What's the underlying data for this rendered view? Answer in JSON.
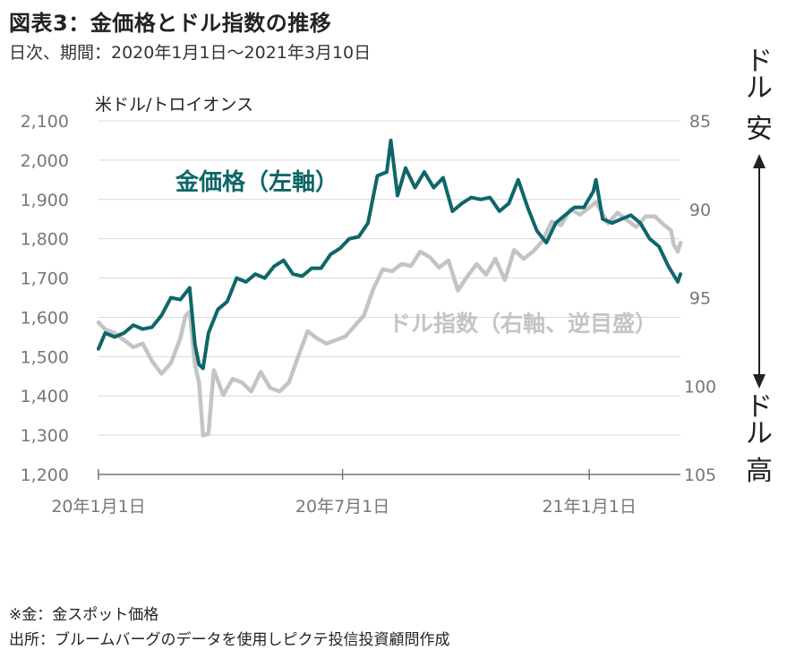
{
  "title": "図表3：金価格とドル指数の推移",
  "subtitle": "日次、期間：2020年1月1日～2021年3月10日",
  "notes": [
    "※金：金スポット価格",
    "出所：ブルームバーグのデータを使用しピクテ投信投資顧問作成"
  ],
  "colors": {
    "gold": "#0e6668",
    "dollar": "#c4c4c4",
    "grid": "#d9d9d9",
    "axis": "#777777"
  },
  "chart_data": {
    "type": "line",
    "left_unit": "米ドル/トロイオンス",
    "left_ylim": [
      1200,
      2100
    ],
    "left_ticks": [
      "2,100",
      "2,000",
      "1,900",
      "1,800",
      "1,700",
      "1,600",
      "1,500",
      "1,400",
      "1,300",
      "1,200"
    ],
    "right_ylim": [
      85,
      105
    ],
    "right_inverted": true,
    "right_ticks": [
      "85",
      "90",
      "95",
      "100",
      "105"
    ],
    "right_top_label": "ドル安",
    "right_bottom_label": "ドル高",
    "x_tick_labels": [
      "20年1月1日",
      "20年7月1日",
      "21年1月1日"
    ],
    "x_range": [
      "2020-01-01",
      "2021-03-10"
    ],
    "series": [
      {
        "name": "金価格（左軸）",
        "axis": "left",
        "points": [
          [
            "2020-01-01",
            1520
          ],
          [
            "2020-01-06",
            1560
          ],
          [
            "2020-01-13",
            1550
          ],
          [
            "2020-01-20",
            1560
          ],
          [
            "2020-01-27",
            1580
          ],
          [
            "2020-02-03",
            1570
          ],
          [
            "2020-02-10",
            1575
          ],
          [
            "2020-02-17",
            1605
          ],
          [
            "2020-02-24",
            1650
          ],
          [
            "2020-03-02",
            1645
          ],
          [
            "2020-03-09",
            1675
          ],
          [
            "2020-03-13",
            1530
          ],
          [
            "2020-03-16",
            1480
          ],
          [
            "2020-03-19",
            1470
          ],
          [
            "2020-03-23",
            1560
          ],
          [
            "2020-03-30",
            1620
          ],
          [
            "2020-04-06",
            1640
          ],
          [
            "2020-04-13",
            1700
          ],
          [
            "2020-04-20",
            1690
          ],
          [
            "2020-04-27",
            1710
          ],
          [
            "2020-05-04",
            1700
          ],
          [
            "2020-05-11",
            1730
          ],
          [
            "2020-05-18",
            1745
          ],
          [
            "2020-05-25",
            1710
          ],
          [
            "2020-06-01",
            1705
          ],
          [
            "2020-06-08",
            1725
          ],
          [
            "2020-06-15",
            1725
          ],
          [
            "2020-06-22",
            1760
          ],
          [
            "2020-06-29",
            1775
          ],
          [
            "2020-07-06",
            1800
          ],
          [
            "2020-07-13",
            1805
          ],
          [
            "2020-07-20",
            1840
          ],
          [
            "2020-07-27",
            1960
          ],
          [
            "2020-08-03",
            1970
          ],
          [
            "2020-08-06",
            2050
          ],
          [
            "2020-08-11",
            1910
          ],
          [
            "2020-08-17",
            1980
          ],
          [
            "2020-08-24",
            1930
          ],
          [
            "2020-08-31",
            1970
          ],
          [
            "2020-09-07",
            1930
          ],
          [
            "2020-09-14",
            1955
          ],
          [
            "2020-09-21",
            1870
          ],
          [
            "2020-09-28",
            1890
          ],
          [
            "2020-10-05",
            1905
          ],
          [
            "2020-10-12",
            1900
          ],
          [
            "2020-10-19",
            1905
          ],
          [
            "2020-10-26",
            1870
          ],
          [
            "2020-11-02",
            1890
          ],
          [
            "2020-11-09",
            1950
          ],
          [
            "2020-11-16",
            1880
          ],
          [
            "2020-11-23",
            1820
          ],
          [
            "2020-11-30",
            1790
          ],
          [
            "2020-12-07",
            1840
          ],
          [
            "2020-12-14",
            1860
          ],
          [
            "2020-12-21",
            1880
          ],
          [
            "2020-12-28",
            1880
          ],
          [
            "2021-01-04",
            1920
          ],
          [
            "2021-01-06",
            1950
          ],
          [
            "2021-01-11",
            1850
          ],
          [
            "2021-01-18",
            1840
          ],
          [
            "2021-01-25",
            1850
          ],
          [
            "2021-02-01",
            1860
          ],
          [
            "2021-02-08",
            1840
          ],
          [
            "2021-02-15",
            1800
          ],
          [
            "2021-02-22",
            1780
          ],
          [
            "2021-03-01",
            1730
          ],
          [
            "2021-03-08",
            1690
          ],
          [
            "2021-03-10",
            1710
          ]
        ]
      },
      {
        "name": "ドル指数（右軸、逆目盛）",
        "axis": "right",
        "points": [
          [
            "2020-01-01",
            96.4
          ],
          [
            "2020-01-06",
            96.8
          ],
          [
            "2020-01-13",
            97.0
          ],
          [
            "2020-01-20",
            97.4
          ],
          [
            "2020-01-27",
            97.8
          ],
          [
            "2020-02-03",
            97.6
          ],
          [
            "2020-02-10",
            98.6
          ],
          [
            "2020-02-17",
            99.3
          ],
          [
            "2020-02-24",
            98.7
          ],
          [
            "2020-03-02",
            97.3
          ],
          [
            "2020-03-06",
            96.0
          ],
          [
            "2020-03-09",
            95.8
          ],
          [
            "2020-03-13",
            98.8
          ],
          [
            "2020-03-16",
            99.8
          ],
          [
            "2020-03-19",
            102.8
          ],
          [
            "2020-03-23",
            102.7
          ],
          [
            "2020-03-27",
            99.1
          ],
          [
            "2020-04-03",
            100.5
          ],
          [
            "2020-04-10",
            99.6
          ],
          [
            "2020-04-17",
            99.8
          ],
          [
            "2020-04-24",
            100.3
          ],
          [
            "2020-05-01",
            99.2
          ],
          [
            "2020-05-08",
            100.1
          ],
          [
            "2020-05-15",
            100.3
          ],
          [
            "2020-05-22",
            99.8
          ],
          [
            "2020-05-29",
            98.3
          ],
          [
            "2020-06-05",
            96.9
          ],
          [
            "2020-06-12",
            97.3
          ],
          [
            "2020-06-19",
            97.6
          ],
          [
            "2020-06-26",
            97.4
          ],
          [
            "2020-07-03",
            97.2
          ],
          [
            "2020-07-10",
            96.6
          ],
          [
            "2020-07-17",
            96.0
          ],
          [
            "2020-07-24",
            94.5
          ],
          [
            "2020-07-31",
            93.4
          ],
          [
            "2020-08-07",
            93.5
          ],
          [
            "2020-08-14",
            93.1
          ],
          [
            "2020-08-21",
            93.2
          ],
          [
            "2020-08-28",
            92.4
          ],
          [
            "2020-09-04",
            92.7
          ],
          [
            "2020-09-11",
            93.3
          ],
          [
            "2020-09-18",
            92.9
          ],
          [
            "2020-09-25",
            94.6
          ],
          [
            "2020-10-02",
            93.8
          ],
          [
            "2020-10-09",
            93.1
          ],
          [
            "2020-10-16",
            93.7
          ],
          [
            "2020-10-23",
            92.8
          ],
          [
            "2020-10-30",
            94.0
          ],
          [
            "2020-11-06",
            92.3
          ],
          [
            "2020-11-13",
            92.8
          ],
          [
            "2020-11-20",
            92.4
          ],
          [
            "2020-11-27",
            91.8
          ],
          [
            "2020-12-04",
            90.7
          ],
          [
            "2020-12-11",
            90.9
          ],
          [
            "2020-12-18",
            90.0
          ],
          [
            "2020-12-25",
            90.3
          ],
          [
            "2021-01-01",
            89.9
          ],
          [
            "2021-01-06",
            89.6
          ],
          [
            "2021-01-15",
            90.8
          ],
          [
            "2021-01-22",
            90.2
          ],
          [
            "2021-01-29",
            90.6
          ],
          [
            "2021-02-05",
            91.0
          ],
          [
            "2021-02-12",
            90.4
          ],
          [
            "2021-02-19",
            90.4
          ],
          [
            "2021-02-26",
            90.9
          ],
          [
            "2021-03-03",
            91.2
          ],
          [
            "2021-03-05",
            92.0
          ],
          [
            "2021-03-08",
            92.4
          ],
          [
            "2021-03-10",
            91.9
          ]
        ]
      }
    ]
  }
}
